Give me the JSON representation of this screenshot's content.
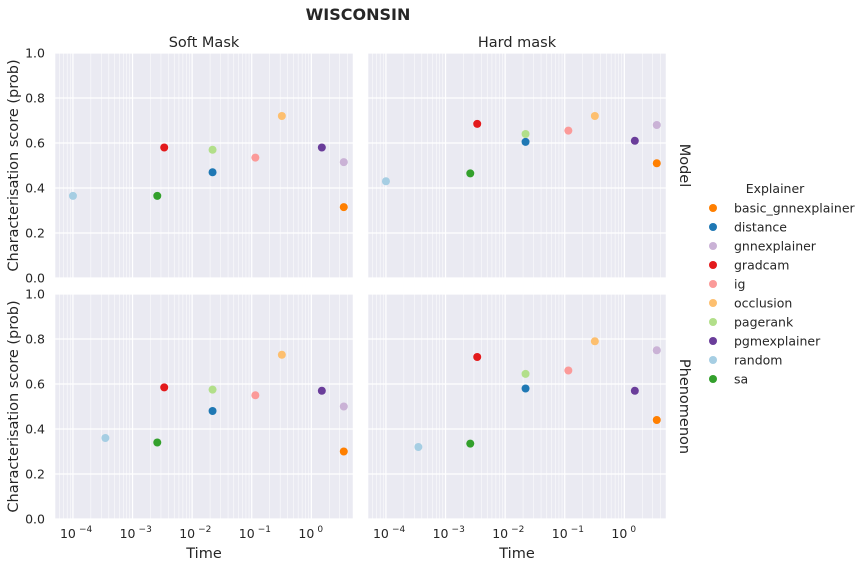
{
  "chart_data": {
    "type": "scatter",
    "title": "WISCONSIN",
    "xlabel": "Time",
    "ylabel": "Characterisation score (prob)",
    "xscale": "log",
    "xlim": [
      5e-05,
      5
    ],
    "ylim": [
      0,
      1
    ],
    "x_ticks": [
      0.0001,
      0.001,
      0.01,
      0.1,
      1
    ],
    "x_tick_labels": [
      "10",
      "10",
      "10",
      "10",
      "10"
    ],
    "x_tick_exponents": [
      "−4",
      "−3",
      "−2",
      "−1",
      "0"
    ],
    "y_ticks": [
      0.0,
      0.2,
      0.4,
      0.6,
      0.8,
      1.0
    ],
    "y_tick_labels": [
      "0.0",
      "0.2",
      "0.4",
      "0.6",
      "0.8",
      "1.0"
    ],
    "grid": true,
    "columns": [
      "Soft Mask",
      "Hard mask"
    ],
    "rows": [
      "Model",
      "Phenomenon"
    ],
    "legend": {
      "title": "Explainer",
      "placement": "right",
      "entries": [
        {
          "name": "basic_gnnexplainer",
          "color": "#ff7f00"
        },
        {
          "name": "distance",
          "color": "#1f78b4"
        },
        {
          "name": "gnnexplainer",
          "color": "#cab2d6"
        },
        {
          "name": "gradcam",
          "color": "#e31a1c"
        },
        {
          "name": "ig",
          "color": "#fb9a99"
        },
        {
          "name": "occlusion",
          "color": "#fdbf6f"
        },
        {
          "name": "pagerank",
          "color": "#b2df8a"
        },
        {
          "name": "pgmexplainer",
          "color": "#6a3d9a"
        },
        {
          "name": "random",
          "color": "#a6cee3"
        },
        {
          "name": "sa",
          "color": "#33a02c"
        }
      ]
    },
    "panels": [
      {
        "column": "Soft Mask",
        "row": "Model",
        "points": [
          {
            "series": "basic_gnnexplainer",
            "x": 3.5,
            "y": 0.315
          },
          {
            "series": "distance",
            "x": 0.022,
            "y": 0.47
          },
          {
            "series": "gnnexplainer",
            "x": 3.5,
            "y": 0.515
          },
          {
            "series": "gradcam",
            "x": 0.0034,
            "y": 0.58
          },
          {
            "series": "ig",
            "x": 0.115,
            "y": 0.535
          },
          {
            "series": "occlusion",
            "x": 0.32,
            "y": 0.72
          },
          {
            "series": "pagerank",
            "x": 0.022,
            "y": 0.57
          },
          {
            "series": "pgmexplainer",
            "x": 1.5,
            "y": 0.58
          },
          {
            "series": "random",
            "x": 0.0001,
            "y": 0.365
          },
          {
            "series": "sa",
            "x": 0.0026,
            "y": 0.365
          }
        ]
      },
      {
        "column": "Hard mask",
        "row": "Model",
        "points": [
          {
            "series": "basic_gnnexplainer",
            "x": 3.5,
            "y": 0.51
          },
          {
            "series": "distance",
            "x": 0.022,
            "y": 0.605
          },
          {
            "series": "gnnexplainer",
            "x": 3.5,
            "y": 0.68
          },
          {
            "series": "gradcam",
            "x": 0.0034,
            "y": 0.685
          },
          {
            "series": "ig",
            "x": 0.115,
            "y": 0.655
          },
          {
            "series": "occlusion",
            "x": 0.32,
            "y": 0.72
          },
          {
            "series": "pagerank",
            "x": 0.022,
            "y": 0.64
          },
          {
            "series": "pgmexplainer",
            "x": 1.5,
            "y": 0.61
          },
          {
            "series": "random",
            "x": 0.0001,
            "y": 0.43
          },
          {
            "series": "sa",
            "x": 0.0026,
            "y": 0.465
          }
        ]
      },
      {
        "column": "Soft Mask",
        "row": "Phenomenon",
        "points": [
          {
            "series": "basic_gnnexplainer",
            "x": 3.5,
            "y": 0.3
          },
          {
            "series": "distance",
            "x": 0.022,
            "y": 0.48
          },
          {
            "series": "gnnexplainer",
            "x": 3.5,
            "y": 0.5
          },
          {
            "series": "gradcam",
            "x": 0.0034,
            "y": 0.585
          },
          {
            "series": "ig",
            "x": 0.115,
            "y": 0.55
          },
          {
            "series": "occlusion",
            "x": 0.32,
            "y": 0.73
          },
          {
            "series": "pagerank",
            "x": 0.022,
            "y": 0.575
          },
          {
            "series": "pgmexplainer",
            "x": 1.5,
            "y": 0.57
          },
          {
            "series": "random",
            "x": 0.00035,
            "y": 0.36
          },
          {
            "series": "sa",
            "x": 0.0026,
            "y": 0.34
          }
        ]
      },
      {
        "column": "Hard mask",
        "row": "Phenomenon",
        "points": [
          {
            "series": "basic_gnnexplainer",
            "x": 3.5,
            "y": 0.44
          },
          {
            "series": "distance",
            "x": 0.022,
            "y": 0.58
          },
          {
            "series": "gnnexplainer",
            "x": 3.5,
            "y": 0.75
          },
          {
            "series": "gradcam",
            "x": 0.0034,
            "y": 0.72
          },
          {
            "series": "ig",
            "x": 0.115,
            "y": 0.66
          },
          {
            "series": "occlusion",
            "x": 0.32,
            "y": 0.79
          },
          {
            "series": "pagerank",
            "x": 0.022,
            "y": 0.645
          },
          {
            "series": "pgmexplainer",
            "x": 1.5,
            "y": 0.57
          },
          {
            "series": "random",
            "x": 0.00035,
            "y": 0.32
          },
          {
            "series": "sa",
            "x": 0.0026,
            "y": 0.335
          }
        ]
      }
    ]
  }
}
